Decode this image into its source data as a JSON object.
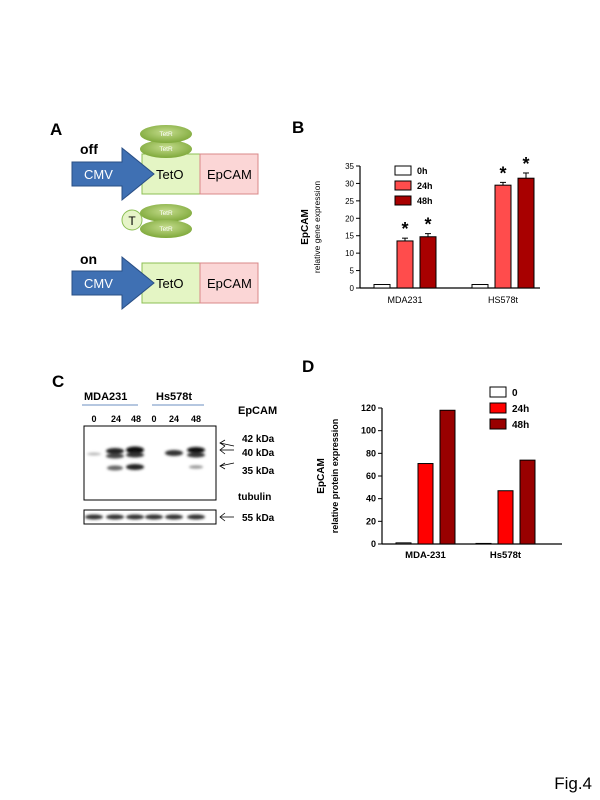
{
  "panels": {
    "A": "A",
    "B": "B",
    "C": "C",
    "D": "D"
  },
  "figure_label": "Fig.4",
  "panel_a": {
    "off_label": "off",
    "on_label": "on",
    "cmv": "CMV",
    "teto": "TetO",
    "epcam": "EpCAM",
    "tetr": "TetR",
    "t_label": "T"
  },
  "panel_c": {
    "groups": [
      "MDA231",
      "Hs578t"
    ],
    "lanes": [
      "0",
      "24",
      "48",
      "0",
      "24",
      "48"
    ],
    "epcam_label": "EpCAM",
    "tubulin_label": "tubulin",
    "markers": [
      "42 kDa",
      "40 kDa",
      "35 kDa"
    ],
    "tubulin_marker": "55 kDa"
  },
  "chart_data": [
    {
      "type": "bar",
      "panel": "B",
      "categories": [
        "MDA231",
        "HS578t"
      ],
      "series": [
        {
          "name": "0h",
          "values": [
            1,
            1
          ],
          "color": "#ffffff"
        },
        {
          "name": "24h",
          "values": [
            13.5,
            29.5
          ],
          "errors": [
            0.8,
            0.8
          ],
          "color": "#ff4c4c"
        },
        {
          "name": "48h",
          "values": [
            14.7,
            31.5
          ],
          "errors": [
            0.9,
            1.5
          ],
          "color": "#a80000"
        }
      ],
      "significance": [
        [
          false,
          true,
          true
        ],
        [
          false,
          true,
          true
        ]
      ],
      "star": "*",
      "ylabel": "EpCAM",
      "ylabel2": "relative gene expression",
      "ylim": [
        0,
        35
      ],
      "yticks": [
        "0",
        "5",
        "10",
        "15",
        "20",
        "25",
        "30",
        "35"
      ],
      "legend_position": "top-left"
    },
    {
      "type": "bar",
      "panel": "D",
      "categories": [
        "MDA-231",
        "Hs578t"
      ],
      "series": [
        {
          "name": "0",
          "values": [
            1,
            0.5
          ],
          "color": "#ffffff"
        },
        {
          "name": "24h",
          "values": [
            71,
            47
          ],
          "color": "#ff0000"
        },
        {
          "name": "48h",
          "values": [
            118,
            74
          ],
          "color": "#990000"
        }
      ],
      "ylabel": "EpCAM",
      "ylabel2": "relative protein expression",
      "ylim": [
        0,
        120
      ],
      "yticks": [
        "0",
        "20",
        "40",
        "60",
        "80",
        "100",
        "120"
      ],
      "legend_position": "top-right"
    }
  ]
}
